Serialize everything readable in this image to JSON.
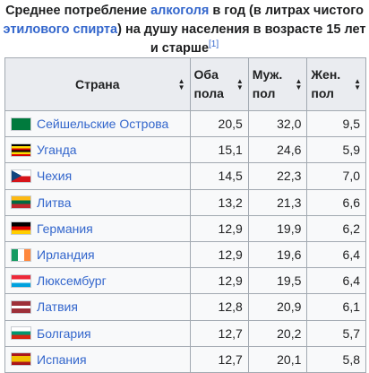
{
  "caption": {
    "part1": "Среднее потребление ",
    "link_alcohol": "алкоголя",
    "part2": " в год (в литрах чистого ",
    "link_ethanol": "этилового спирта",
    "part3": ") на душу населения в возрасте 15 лет и старше",
    "ref": "[1]"
  },
  "table": {
    "headers": [
      {
        "label": "Страна"
      },
      {
        "label": "Оба пола"
      },
      {
        "label": "Муж. пол"
      },
      {
        "label": "Жен. пол"
      }
    ],
    "sort_icon": "sort-arrows-icon",
    "rows": [
      {
        "country": "Сейшельские Острова",
        "flag": "seychelles-flag",
        "both": "20,5",
        "male": "32,0",
        "female": "9,5"
      },
      {
        "country": "Уганда",
        "flag": "uganda-flag",
        "both": "15,1",
        "male": "24,6",
        "female": "5,9"
      },
      {
        "country": "Чехия",
        "flag": "czech-flag",
        "both": "14,5",
        "male": "22,3",
        "female": "7,0"
      },
      {
        "country": "Литва",
        "flag": "lithuania-flag",
        "both": "13,2",
        "male": "21,3",
        "female": "6,6"
      },
      {
        "country": "Германия",
        "flag": "germany-flag",
        "both": "12,9",
        "male": "19,9",
        "female": "6,2"
      },
      {
        "country": "Ирландия",
        "flag": "ireland-flag",
        "both": "12,9",
        "male": "19,6",
        "female": "6,4"
      },
      {
        "country": "Люксембург",
        "flag": "luxembourg-flag",
        "both": "12,9",
        "male": "19,5",
        "female": "6,4"
      },
      {
        "country": "Латвия",
        "flag": "latvia-flag",
        "both": "12,8",
        "male": "20,9",
        "female": "6,1"
      },
      {
        "country": "Болгария",
        "flag": "bulgaria-flag",
        "both": "12,7",
        "male": "20,2",
        "female": "5,7"
      },
      {
        "country": "Испания",
        "flag": "spain-flag",
        "both": "12,7",
        "male": "20,1",
        "female": "5,8"
      }
    ]
  },
  "colors": {
    "link": "#3366cc",
    "header_bg": "#eaecf0",
    "cell_bg": "#f8f9fa",
    "border": "#a2a9b1"
  }
}
